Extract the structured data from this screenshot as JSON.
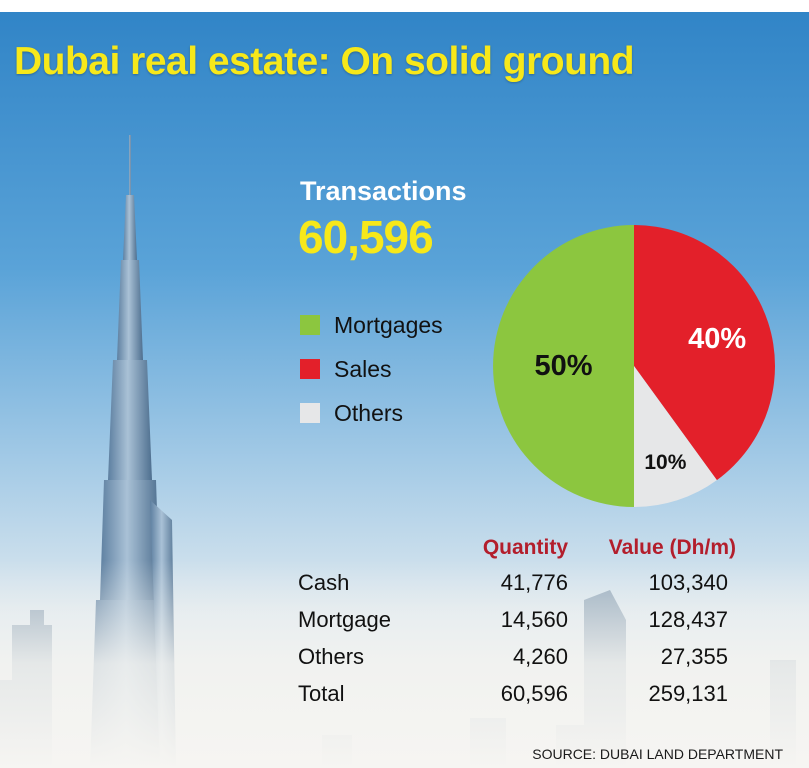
{
  "title": "Dubai real estate: On solid ground",
  "transactions": {
    "label": "Transactions",
    "value": "60,596"
  },
  "colors": {
    "title_yellow": "#f7e81a",
    "mortgages_green": "#8cc63f",
    "sales_red": "#e3202a",
    "others_grey": "#e6e7e8",
    "header_red": "#b31e2c"
  },
  "chart_data": [
    {
      "type": "pie",
      "title": "",
      "slices": [
        {
          "name": "Mortgages",
          "value": 50,
          "label": "50%",
          "color": "#8cc63f"
        },
        {
          "name": "Sales",
          "value": 40,
          "label": "40%",
          "color": "#e3202a"
        },
        {
          "name": "Others",
          "value": 10,
          "label": "10%",
          "color": "#e6e7e8"
        }
      ],
      "legend": [
        "Mortgages",
        "Sales",
        "Others"
      ],
      "legend_placement": "left"
    },
    {
      "type": "table",
      "columns": [
        "",
        "Quantity",
        "Value (Dh/m)"
      ],
      "rows": [
        {
          "label": "Cash",
          "quantity": "41,776",
          "value": "103,340"
        },
        {
          "label": "Mortgage",
          "quantity": "14,560",
          "value": "128,437"
        },
        {
          "label": "Others",
          "quantity": "4,260",
          "value": "27,355"
        },
        {
          "label": "Total",
          "quantity": "60,596",
          "value": "259,131"
        }
      ]
    }
  ],
  "source": "SOURCE: DUBAI LAND DEPARTMENT"
}
